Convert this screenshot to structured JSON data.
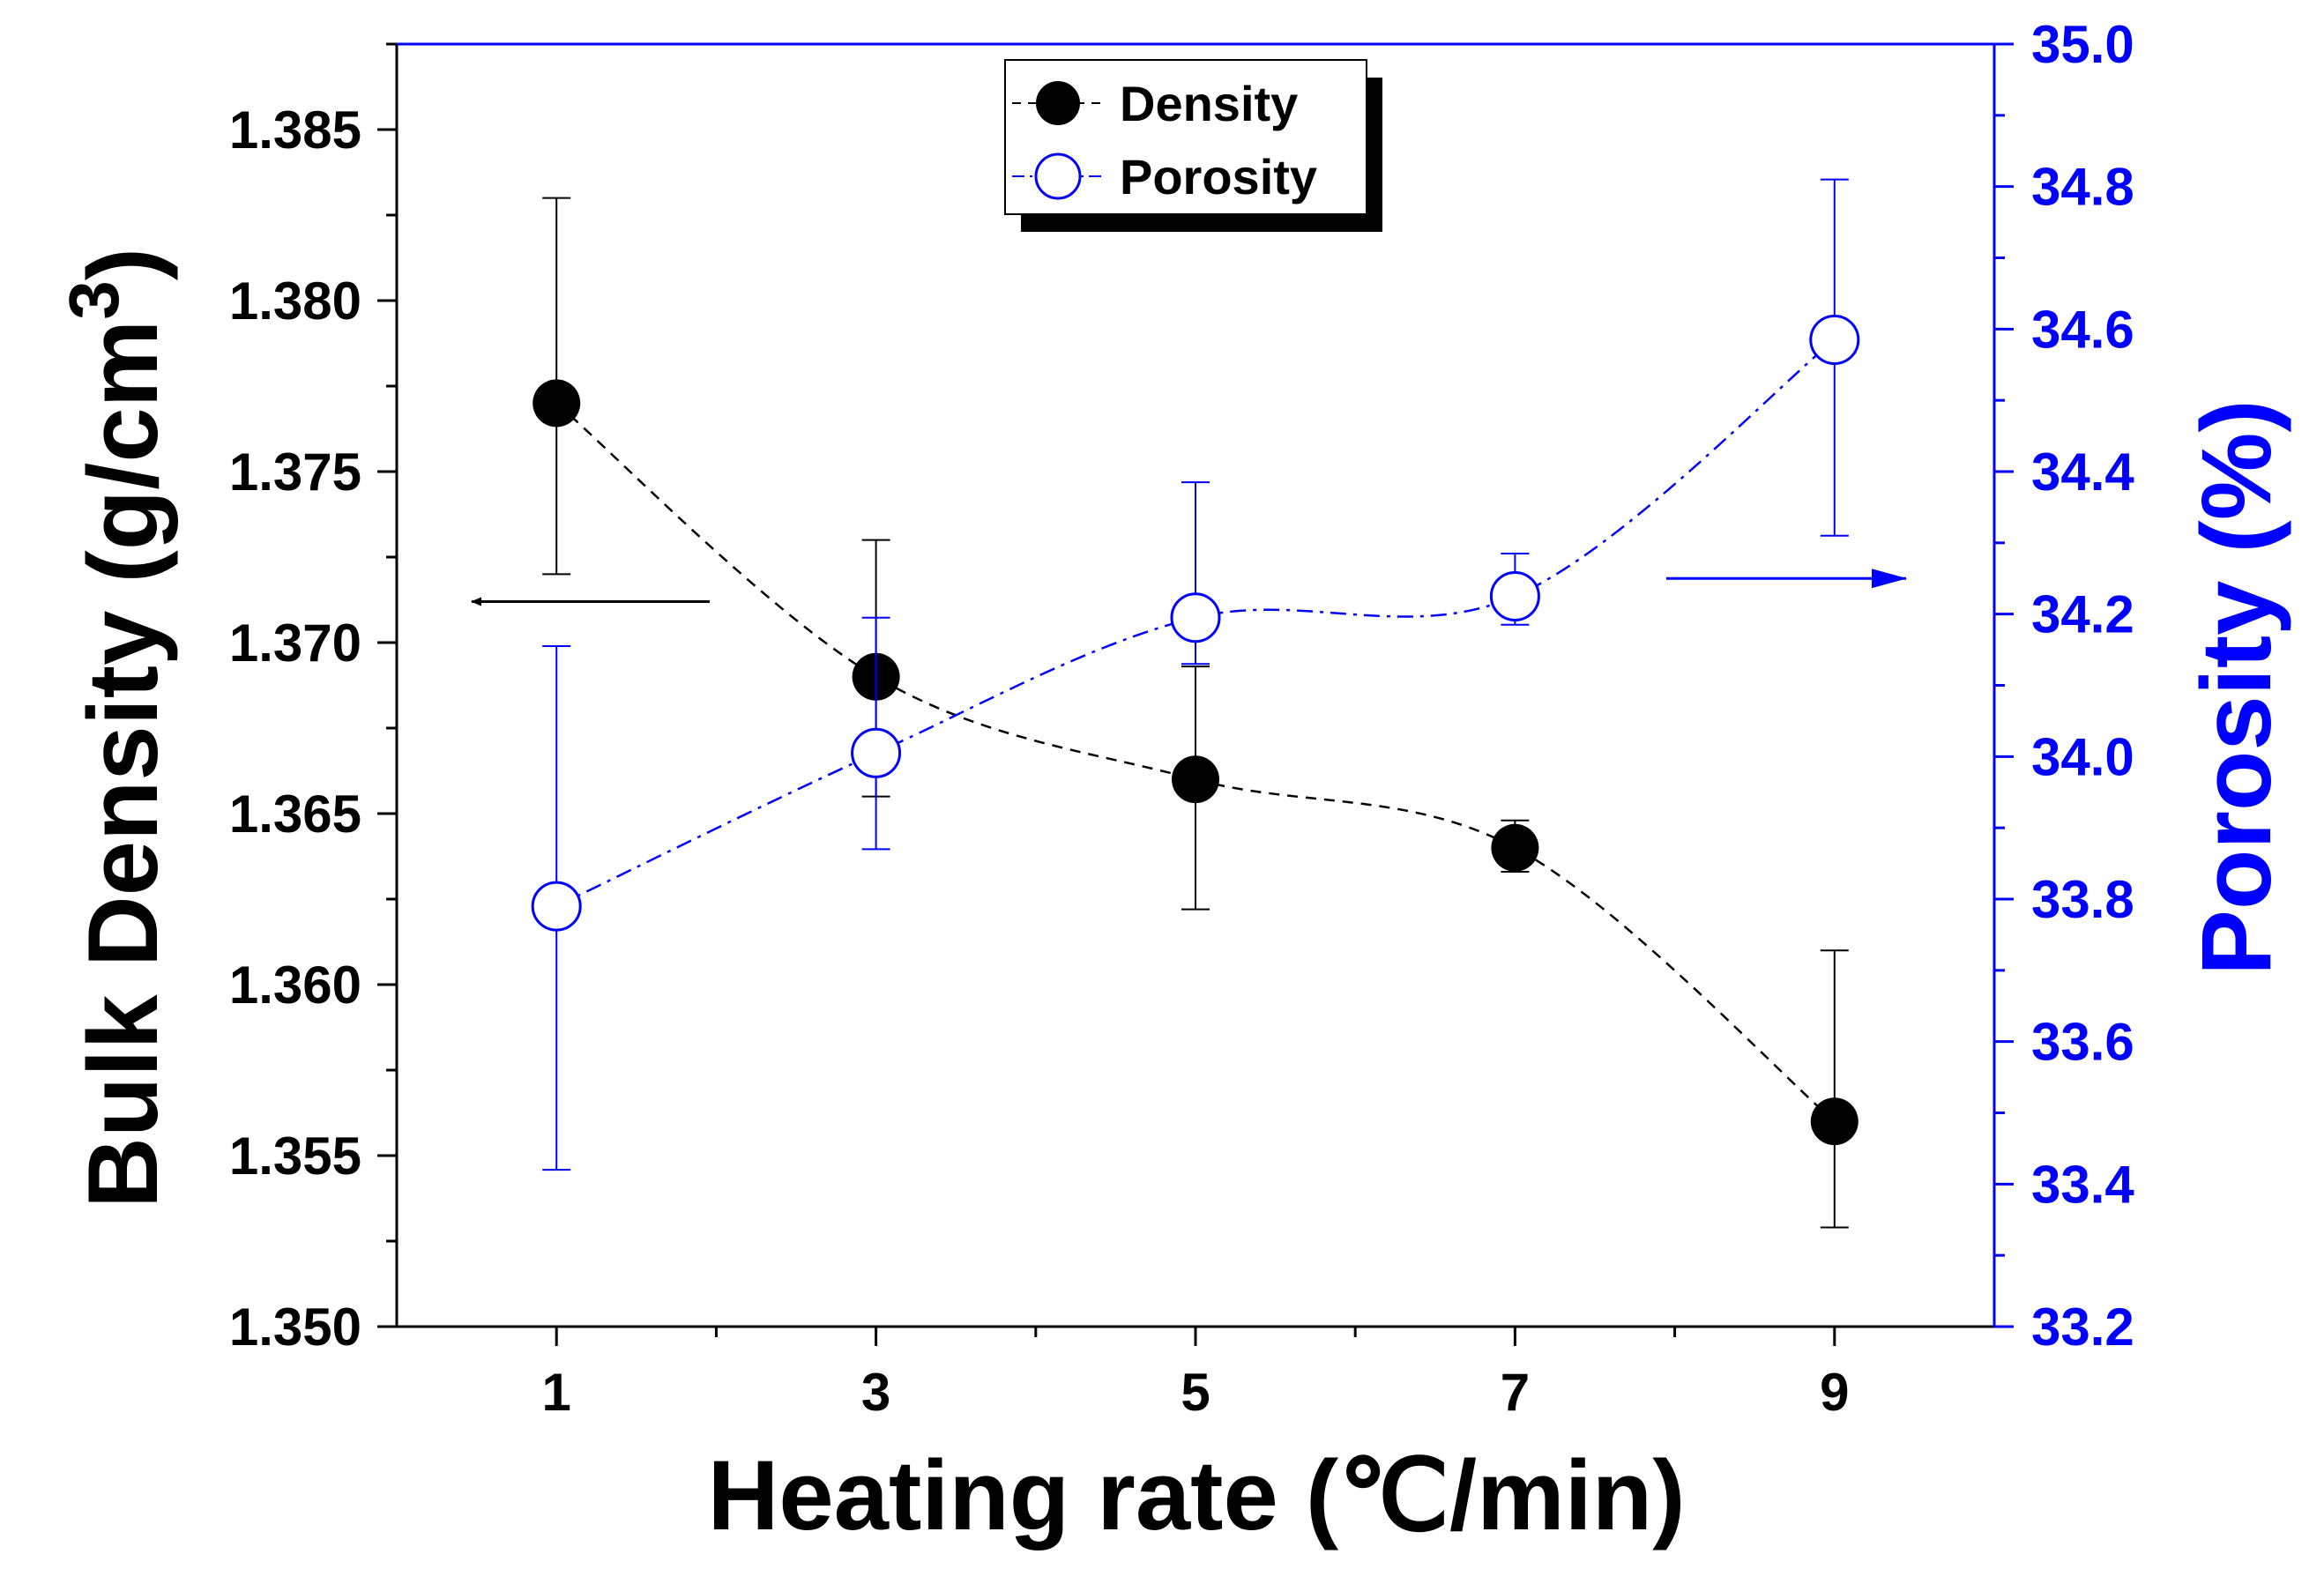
{
  "chart_data": {
    "type": "scatter",
    "x": [
      1,
      3,
      5,
      7,
      9
    ],
    "xlabel": "Heating rate (℃/min)",
    "xticks": [
      "1",
      "3",
      "5",
      "7",
      "9"
    ],
    "xlim": [
      0,
      10
    ],
    "left_axis": {
      "label_main": "Bulk Density (g/cm",
      "label_sup": "3",
      "label_close": ")",
      "ylim": [
        1.35,
        1.3875
      ],
      "ticks": [
        "1.350",
        "1.355",
        "1.360",
        "1.365",
        "1.370",
        "1.375",
        "1.380",
        "1.385"
      ],
      "color": "#000000"
    },
    "right_axis": {
      "label": "Porosity (%)",
      "ylim": [
        33.2,
        35.0
      ],
      "ticks": [
        "33.2",
        "33.4",
        "33.6",
        "33.8",
        "34.0",
        "34.2",
        "34.4",
        "34.6",
        "34.8",
        "35.0"
      ],
      "color": "#0000ff"
    },
    "series": [
      {
        "name": "Density",
        "axis": "left",
        "values": [
          1.377,
          1.369,
          1.366,
          1.364,
          1.356
        ],
        "err_low": [
          1.372,
          1.3655,
          1.3622,
          1.3633,
          1.3529
        ],
        "err_high": [
          1.383,
          1.373,
          1.3693,
          1.3648,
          1.361
        ],
        "color": "#000000",
        "marker": "filled-circle",
        "line": "dashed"
      },
      {
        "name": "Porosity",
        "axis": "right",
        "values": [
          33.79,
          34.005,
          34.195,
          34.225,
          34.585
        ],
        "err_low": [
          33.42,
          33.87,
          34.13,
          34.185,
          34.31
        ],
        "err_high": [
          34.155,
          34.195,
          34.385,
          34.285,
          34.81
        ],
        "color": "#0000ff",
        "marker": "open-circle",
        "line": "dash-dot"
      }
    ],
    "annotations": [
      {
        "type": "arrow",
        "direction": "left",
        "points_to": "left-axis"
      },
      {
        "type": "arrow",
        "direction": "right",
        "points_to": "right-axis"
      }
    ],
    "legend": {
      "position": "top-center",
      "entries": [
        "Density",
        "Porosity"
      ]
    }
  }
}
